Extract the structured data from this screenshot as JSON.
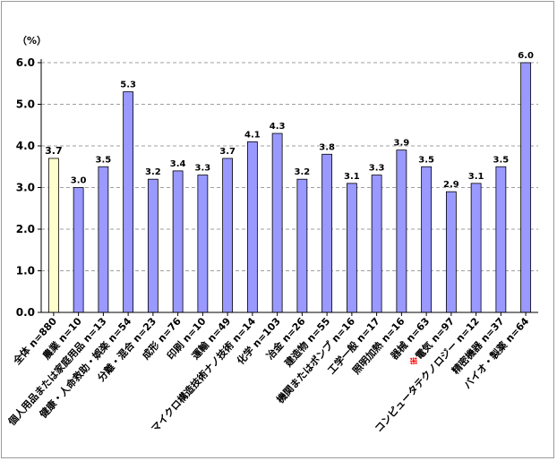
{
  "chart_data": {
    "type": "bar",
    "unit_label": "（%）",
    "ylim": [
      0,
      6.0
    ],
    "y_ticks": [
      "0.0",
      "1.0",
      "2.0",
      "3.0",
      "4.0",
      "5.0",
      "6.0"
    ],
    "grid": true,
    "categories": [
      {
        "label": "全体 n=880",
        "mark": ""
      },
      {
        "label": "農業 n=10",
        "mark": ""
      },
      {
        "label": "個人用品または家庭用品 n=13",
        "mark": ""
      },
      {
        "label": "健康・人命救助・娯楽 n=54",
        "mark": ""
      },
      {
        "label": "分離・混合 n=23",
        "mark": ""
      },
      {
        "label": "成形 n=76",
        "mark": ""
      },
      {
        "label": "印刷 n=10",
        "mark": ""
      },
      {
        "label": "運輸 n=49",
        "mark": ""
      },
      {
        "label": "マイクロ構造技術ナノ技術 n=14",
        "mark": ""
      },
      {
        "label": "化学 n=103",
        "mark": ""
      },
      {
        "label": "冶金 n=26",
        "mark": ""
      },
      {
        "label": "建造物 n=55",
        "mark": ""
      },
      {
        "label": "機関またはポンプ n=16",
        "mark": ""
      },
      {
        "label": "工学一般 n=17",
        "mark": ""
      },
      {
        "label": "照明加熱 n=16",
        "mark": ""
      },
      {
        "label": "器械 n=63",
        "mark": ""
      },
      {
        "label": "電気 n=97",
        "mark": "※"
      },
      {
        "label": "コンピュータテクノロジー n=12",
        "mark": ""
      },
      {
        "label": "精密機器 n=37",
        "mark": ""
      },
      {
        "label": "バイオ・製薬 n=64",
        "mark": ""
      }
    ],
    "values": [
      3.7,
      3.0,
      3.5,
      5.3,
      3.2,
      3.4,
      3.3,
      3.7,
      4.1,
      4.3,
      3.2,
      3.8,
      3.1,
      3.3,
      3.9,
      3.5,
      2.9,
      3.1,
      3.5,
      6.0
    ],
    "value_labels": [
      "3.7",
      "3.0",
      "3.5",
      "5.3",
      "3.2",
      "3.4",
      "3.3",
      "3.7",
      "4.1",
      "4.3",
      "3.2",
      "3.8",
      "3.1",
      "3.3",
      "3.9",
      "3.5",
      "2.9",
      "3.1",
      "3.5",
      "6.0"
    ],
    "highlight_index": 0,
    "colors": {
      "bar": "#9999ff",
      "bar_highlight": "#ffffcc",
      "label_highlight": "#3333ff",
      "mark": "#ff0000",
      "grid": "#808080",
      "axis": "#000000"
    }
  }
}
